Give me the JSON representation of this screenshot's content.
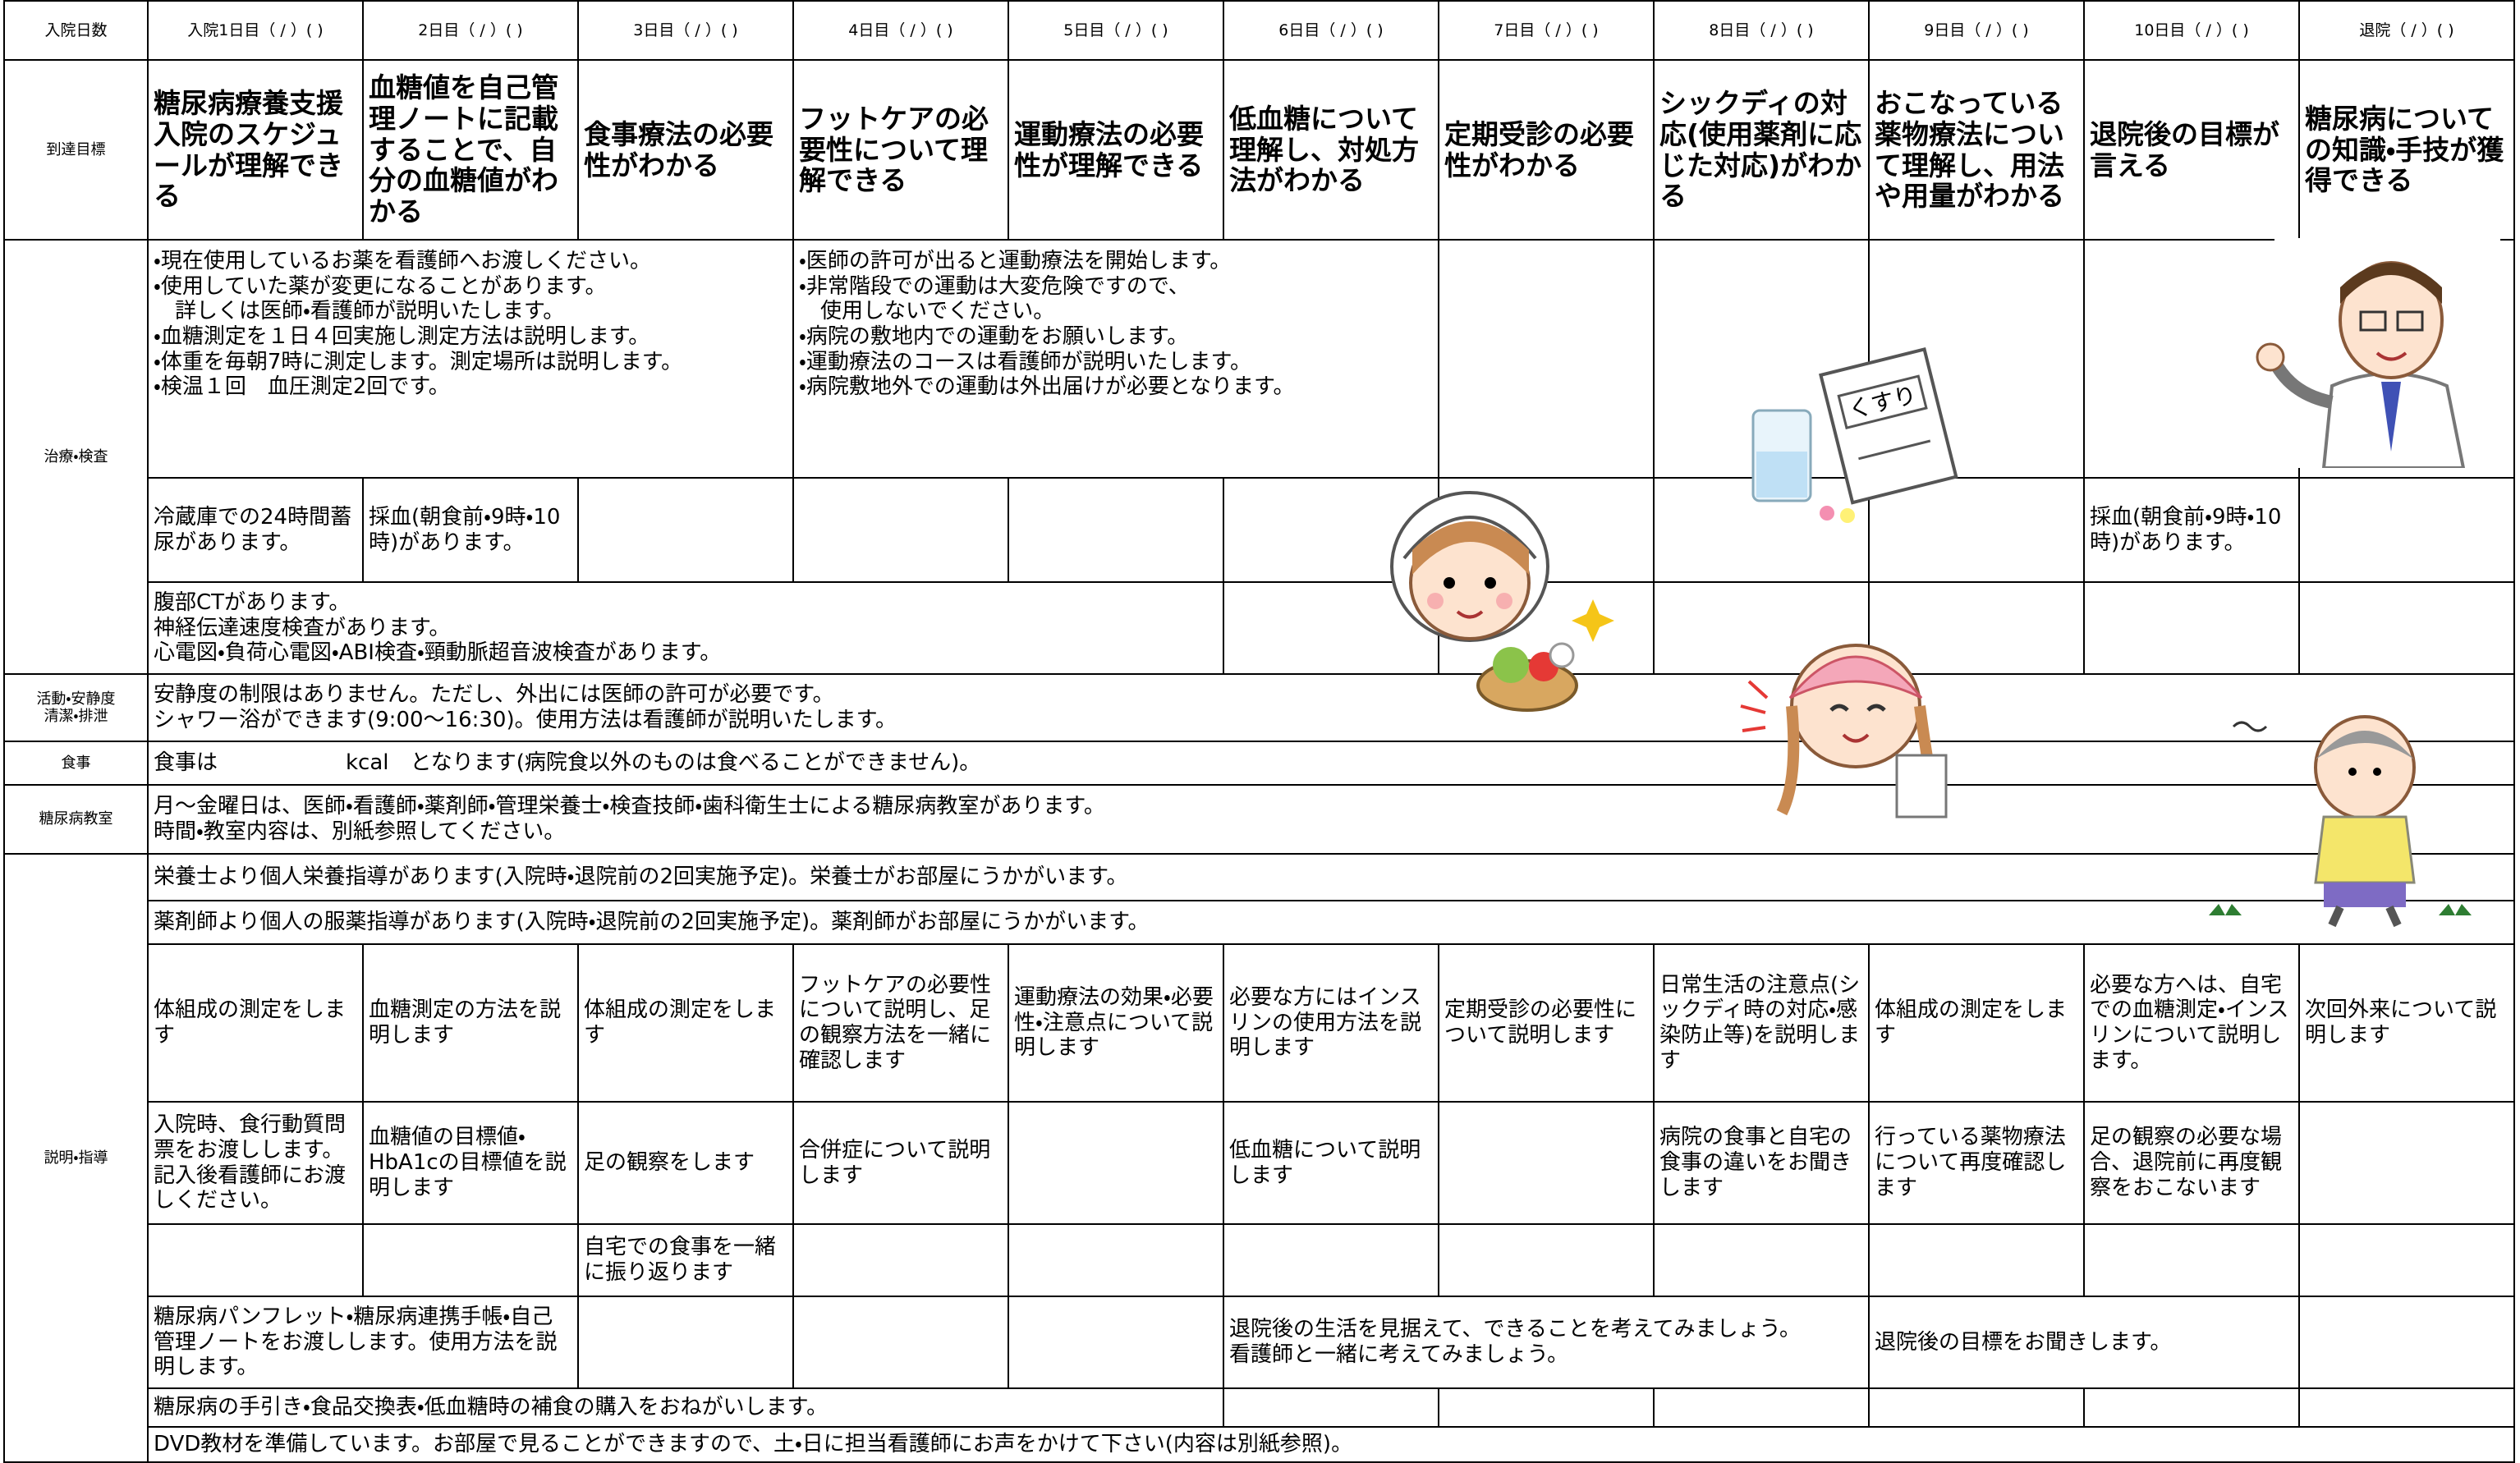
{
  "header": {
    "row_label": "入院日数",
    "days": [
      "入院1日目（ / ）( )",
      "2日目（ / ）( )",
      "3日目（ / ）( )",
      "4日目（ / ）( )",
      "5日目（ / ）( )",
      "6日目（ / ）( )",
      "7日目（ / ）( )",
      "8日目（ / ）( )",
      "9日目（ / ）( )",
      "10日目（ / ）( )",
      "退院（ / ）( )"
    ]
  },
  "goals": {
    "label": "到達目標",
    "items": [
      "糖尿病療養支援入院のスケジュールが理解できる",
      "血糖値を自己管理ノートに記載することで、自分の血糖値がわかる",
      "食事療法の必要性がわかる",
      "フットケアの必要性について理解できる",
      "運動療法の必要性が理解できる",
      "低血糖について理解し、対処方法がわかる",
      "定期受診の必要性がわかる",
      "シックディの対応(使用薬剤に応じた対応)がわかる",
      "おこなっている薬物療法について理解し、用法や用量がわかる",
      "退院後の目標が言える",
      "糖尿病についての知識・手技が獲得できる"
    ]
  },
  "sections": [
    {
      "label": [
        "治療・検査"
      ],
      "rows": [
        [
          [
            "・現在使用しているお薬を看護師へお渡しください。",
            "・使用していた薬が変更になることがあります。",
            "　詳しくは医師・看護師が説明いたします。",
            "・血糖測定を１日４回実施し測定方法は説明します。",
            "・体重を毎朝7時に測定します。測定場所は説明します。",
            "・検温１回　血圧測定2回です。"
          ],
          [
            "・医師の許可が出ると運動療法を開始します。",
            "・非常階段での運動は大変危険ですので、",
            "　使用しないでください。",
            "・病院の敷地内での運動をお願いします。",
            "・運動療法のコースは看護師が説明いたします。",
            "・病院敷地外での運動は外出届けが必要となります。"
          ]
        ],
        [
          "冷蔵庫での24時間蓄尿があります。",
          "採血(朝食前・9時・10時)があります。",
          "採血(朝食前・9時・10時)があります。"
        ],
        [
          [
            "腹部CTがあります。",
            "神経伝達速度検査があります。",
            "心電図・負荷心電図・ABI検査・頸動脈超音波検査があります。"
          ]
        ]
      ]
    },
    {
      "label": [
        "活動・安静度",
        "清潔・排泄"
      ],
      "rows": [
        [
          [
            "安静度の制限はありません。ただし、外出には医師の許可が必要です。",
            "シャワー浴ができます(9:00～16:30)。使用方法は看護師が説明いたします。"
          ]
        ]
      ]
    },
    {
      "label": [
        "食事"
      ],
      "rows": [
        [
          "食事は　　　　　　kcal　となります(病院食以外のものは食べることができません)。"
        ]
      ]
    },
    {
      "label": [
        "糖尿病教室"
      ],
      "rows": [
        [
          [
            "月～金曜日は、医師・看護師・薬剤師・管理栄養士・検査技師・歯科衛生士による糖尿病教室があります。",
            "時間・教室内容は、別紙参照してください。"
          ]
        ]
      ]
    },
    {
      "label": [
        "説明・指導"
      ],
      "rows": [
        [
          "栄養士より個人栄養指導があります(入院時・退院前の2回実施予定)。栄養士がお部屋にうかがいます。"
        ],
        [
          "薬剤師より個人の服薬指導があります(入院時・退院前の2回実施予定)。薬剤師がお部屋にうかがいます。"
        ],
        [
          "体組成の測定をします",
          "血糖測定の方法を説明します",
          "体組成の測定をします",
          "フットケアの必要性について説明し、足の観察方法を一緒に確認します",
          "運動療法の効果・必要性・注意点について説明します",
          "必要な方にはインスリンの使用方法を説明します",
          "定期受診の必要性について説明します",
          "日常生活の注意点(シックディ時の対応・感染防止等)を説明します",
          "体組成の測定をします",
          "必要な方へは、自宅での血糖測定・インスリンについて説明します。",
          "次回外来について説明します"
        ],
        [
          "入院時、食行動質問票をお渡しします。記入後看護師にお渡しください。",
          "血糖値の目標値・HbA1cの目標値を説明します",
          "足の観察をします",
          "合併症について説明します",
          "低血糖について説明します",
          "病院の食事と自宅の食事の違いをお聞きします",
          "行っている薬物療法について再度確認します",
          "足の観察の必要な場合、退院前に再度観察をおこないます"
        ],
        [
          "自宅での食事を一緒に振り返ります"
        ],
        [
          "糖尿病パンフレット・糖尿病連携手帳・自己管理ノートをお渡しします。使用方法を説明します。",
          [
            "退院後の生活を見据えて、できることを考えてみましょう。",
            "看護師と一緒に考えてみましょう。"
          ],
          "退院後の目標をお聞きします。"
        ],
        [
          "糖尿病の手引き・食品交換表・低血糖時の補食の購入をおねがいします。"
        ],
        [
          "DVD教材を準備しています。お部屋で見ることができますので、土・日に担当看護師にお声をかけて下さい(内容は別紙参照)。"
        ]
      ]
    }
  ],
  "illustrations": {
    "medicine_label": "くすり"
  }
}
